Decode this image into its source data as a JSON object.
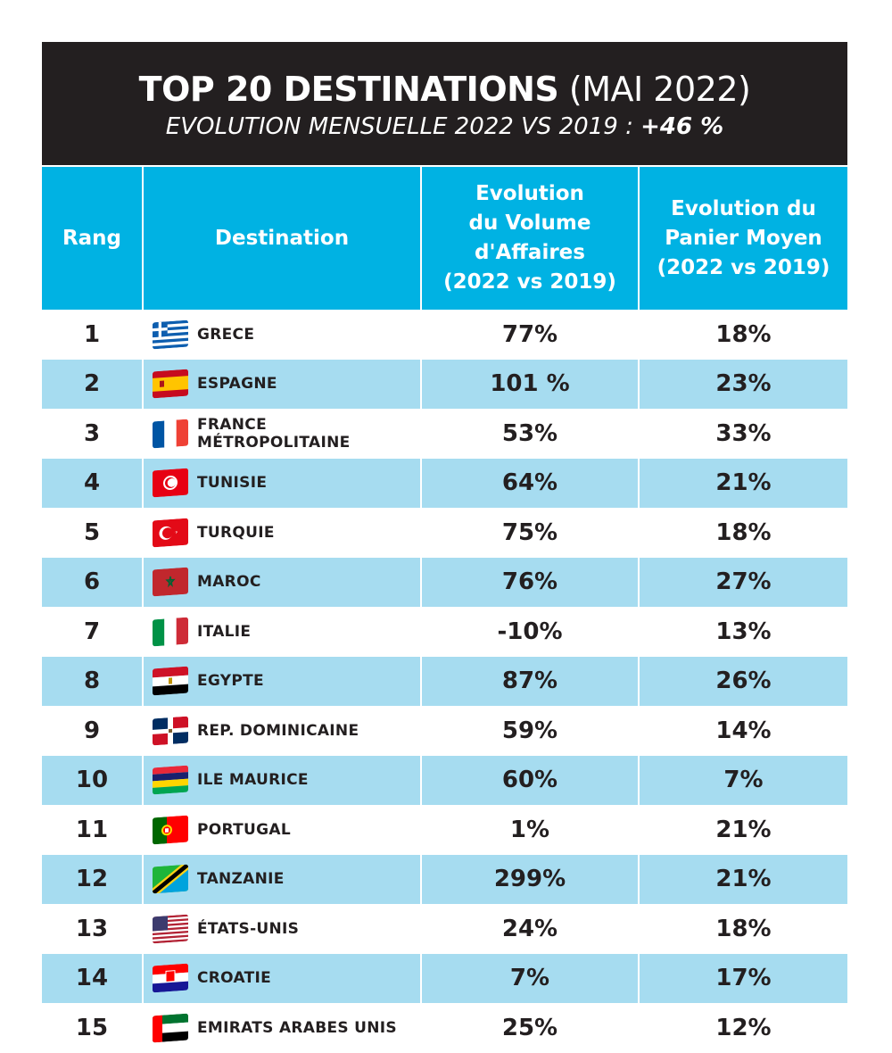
{
  "chart_data": {
    "type": "table",
    "title": "TOP 20 DESTINATIONS",
    "title_suffix": "(MAI 2022)",
    "subtitle": "EVOLUTION MENSUELLE 2022 VS 2019 :",
    "subtitle_value": "+46 %",
    "columns": [
      "Rang",
      "Destination",
      "Evolution\ndu Volume\nd'Affaires\n(2022 vs 2019)",
      "Evolution du\nPanier Moyen\n(2022 vs 2019)"
    ],
    "rows": [
      {
        "rank": "1",
        "destination": "GRECE",
        "flag": "greece-flag-icon",
        "volume": "77%",
        "panier": "18%"
      },
      {
        "rank": "2",
        "destination": "ESPAGNE",
        "flag": "spain-flag-icon",
        "volume": "101 %",
        "panier": "23%"
      },
      {
        "rank": "3",
        "destination": "FRANCE MÉTROPOLITAINE",
        "flag": "france-flag-icon",
        "volume": "53%",
        "panier": "33%"
      },
      {
        "rank": "4",
        "destination": "TUNISIE",
        "flag": "tunisia-flag-icon",
        "volume": "64%",
        "panier": "21%"
      },
      {
        "rank": "5",
        "destination": "TURQUIE",
        "flag": "turkey-flag-icon",
        "volume": "75%",
        "panier": "18%"
      },
      {
        "rank": "6",
        "destination": "MAROC",
        "flag": "morocco-flag-icon",
        "volume": "76%",
        "panier": "27%"
      },
      {
        "rank": "7",
        "destination": "ITALIE",
        "flag": "italy-flag-icon",
        "volume": "-10%",
        "panier": "13%"
      },
      {
        "rank": "8",
        "destination": "EGYPTE",
        "flag": "egypt-flag-icon",
        "volume": "87%",
        "panier": "26%"
      },
      {
        "rank": "9",
        "destination": "REP. DOMINICAINE",
        "flag": "dominican-republic-flag-icon",
        "volume": "59%",
        "panier": "14%"
      },
      {
        "rank": "10",
        "destination": "ILE MAURICE",
        "flag": "mauritius-flag-icon",
        "volume": "60%",
        "panier": "7%"
      },
      {
        "rank": "11",
        "destination": "PORTUGAL",
        "flag": "portugal-flag-icon",
        "volume": "1%",
        "panier": "21%"
      },
      {
        "rank": "12",
        "destination": "TANZANIE",
        "flag": "tanzania-flag-icon",
        "volume": "299%",
        "panier": "21%"
      },
      {
        "rank": "13",
        "destination": "ÉTATS-UNIS",
        "flag": "usa-flag-icon",
        "volume": "24%",
        "panier": "18%"
      },
      {
        "rank": "14",
        "destination": "CROATIE",
        "flag": "croatia-flag-icon",
        "volume": "7%",
        "panier": "17%"
      },
      {
        "rank": "15",
        "destination": "EMIRATS ARABES UNIS",
        "flag": "uae-flag-icon",
        "volume": "25%",
        "panier": "12%"
      }
    ]
  },
  "colors": {
    "title_bg": "#231f20",
    "header_bg": "#00b2e3",
    "row_alt_bg": "#a6dcf0",
    "text": "#231f20"
  }
}
